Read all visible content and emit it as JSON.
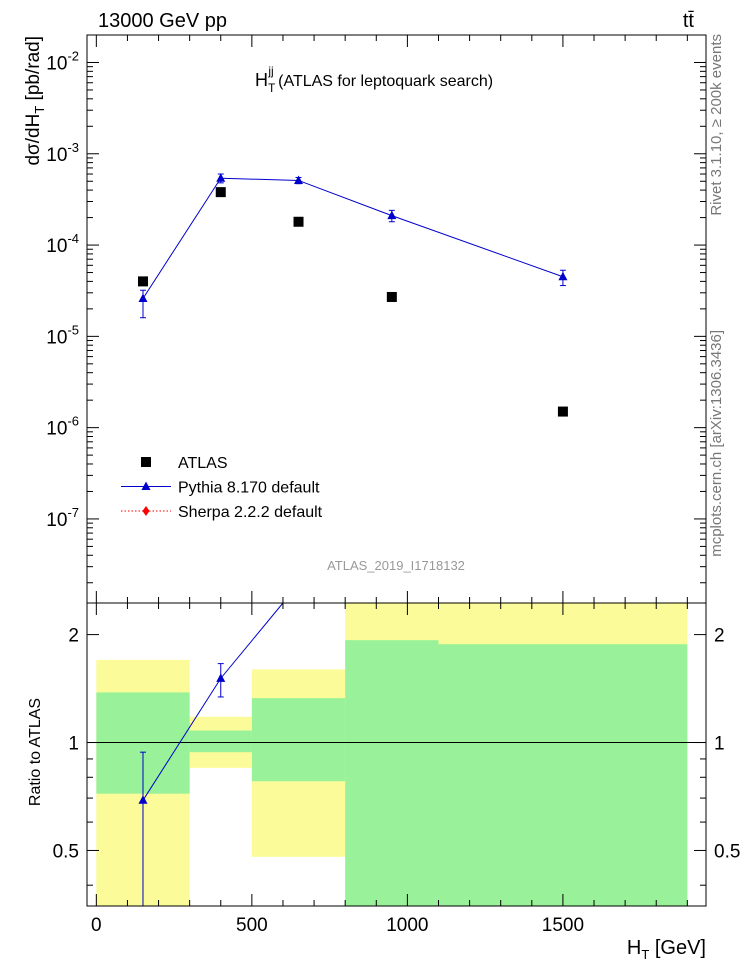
{
  "header": {
    "left": "13000 GeV pp",
    "right": "tt̄"
  },
  "side_labels": {
    "rivet": "Rivet 3.1.10, ≥ 200k events",
    "mcplots": "mcplots.cern.ch [arXiv:1306.3436]"
  },
  "watermark": "ATLAS_2019_I1718132",
  "colors": {
    "data": "#000000",
    "pythia": "#0000cc",
    "sherpa": "#ff0000",
    "band_green": "#99f299",
    "band_yellow": "#fbfb99"
  },
  "chart_data": [
    {
      "type": "line",
      "title": "H_T^jj (ATLAS for leptoquark search)",
      "title_main": "H",
      "title_sub": "T",
      "title_sup": "jj",
      "title_rest": " (ATLAS for leptoquark search)",
      "ylabel": "dσ/dH_T [pb/rad]",
      "ylabel_main": "dσ/dH",
      "ylabel_sub": "T",
      "ylabel_rest": " [pb/rad]",
      "yscale": "log",
      "ylim": [
        1.2e-08,
        0.02
      ],
      "xlim": [
        -30,
        1960
      ],
      "y_ticks": [
        {
          "v": 1e-07,
          "label": "10",
          "exp": "-7"
        },
        {
          "v": 1e-06,
          "label": "10",
          "exp": "-6"
        },
        {
          "v": 1e-05,
          "label": "10",
          "exp": "-5"
        },
        {
          "v": 0.0001,
          "label": "10",
          "exp": "-4"
        },
        {
          "v": 0.001,
          "label": "10",
          "exp": "-3"
        },
        {
          "v": 0.01,
          "label": "10",
          "exp": "-2"
        }
      ],
      "legend": [
        {
          "name": "ATLAS",
          "style": "data"
        },
        {
          "name": "Pythia 8.170 default",
          "style": "pythia"
        },
        {
          "name": "Sherpa 2.2.2 default",
          "style": "sherpa"
        }
      ],
      "legend_position": "lower-left",
      "series": [
        {
          "name": "ATLAS",
          "x": [
            150,
            400,
            650,
            950,
            1500
          ],
          "y": [
            4e-05,
            0.00038,
            0.00018,
            2.7e-05,
            1.5e-06
          ]
        },
        {
          "name": "Pythia 8.170 default",
          "x": [
            150,
            400,
            650,
            950,
            1500
          ],
          "y": [
            2.6e-05,
            0.00054,
            0.00051,
            0.00021,
            4.5e-05
          ],
          "yerr_low": [
            1.6e-05,
            0.00048,
            0.00047,
            0.00018,
            3.6e-05
          ],
          "yerr_high": [
            3.2e-05,
            0.0006,
            0.00055,
            0.00024,
            5.3e-05
          ]
        }
      ]
    },
    {
      "type": "line",
      "ylabel": "Ratio to ATLAS",
      "xlabel": "H_T [GeV]",
      "xlabel_main": "H",
      "xlabel_sub": "T",
      "xlabel_rest": " [GeV]",
      "yscale": "log",
      "ylim": [
        0.35,
        2.45
      ],
      "xlim": [
        -30,
        1960
      ],
      "x_ticks": [
        0,
        500,
        1000,
        1500
      ],
      "y_ticks": [
        {
          "v": 0.5,
          "label": "0.5"
        },
        {
          "v": 1,
          "label": "1"
        },
        {
          "v": 2,
          "label": "2"
        }
      ],
      "bands": [
        {
          "x0": 0,
          "x1": 300,
          "green": [
            0.72,
            1.38
          ],
          "yellow": [
            0.35,
            1.7
          ]
        },
        {
          "x0": 300,
          "x1": 500,
          "green": [
            0.94,
            1.08
          ],
          "yellow": [
            0.85,
            1.18
          ]
        },
        {
          "x0": 500,
          "x1": 800,
          "green": [
            0.78,
            1.33
          ],
          "yellow": [
            0.48,
            1.6
          ]
        },
        {
          "x0": 800,
          "x1": 1100,
          "green": [
            0.35,
            1.93
          ],
          "yellow": [
            0.35,
            2.45
          ]
        },
        {
          "x0": 1100,
          "x1": 1900,
          "green": [
            0.35,
            1.88
          ],
          "yellow": [
            0.35,
            2.45
          ]
        }
      ],
      "series": [
        {
          "name": "Pythia 8.170 default",
          "x": [
            150,
            400,
            600
          ],
          "y": [
            0.69,
            1.51,
            2.45
          ],
          "yerr_low": [
            0.35,
            1.34,
            null
          ],
          "yerr_high": [
            0.94,
            1.66,
            null
          ]
        }
      ]
    }
  ]
}
